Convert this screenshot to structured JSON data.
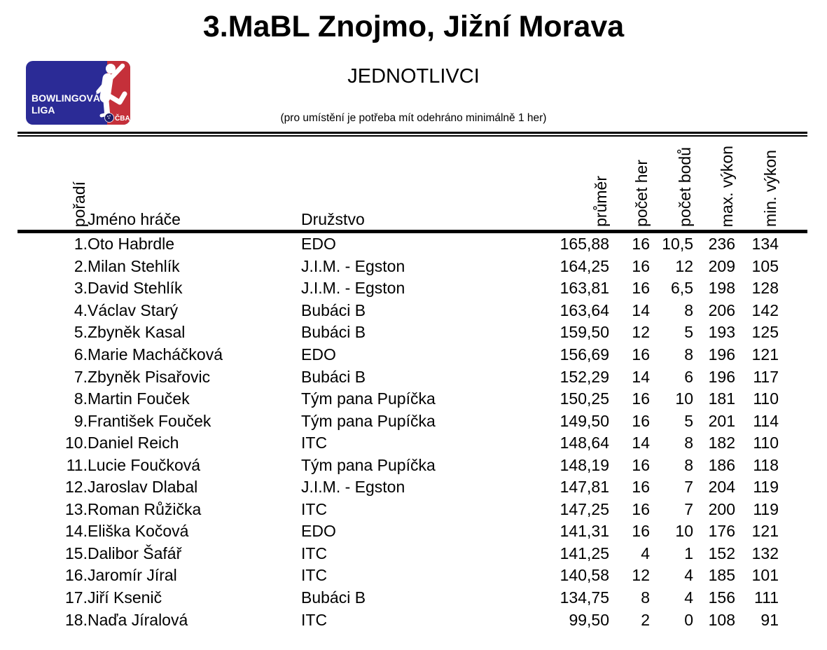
{
  "header": {
    "title": "3.MaBL Znojmo, Jižní Morava",
    "subtitle": "JEDNOTLIVCI",
    "note": "(pro umístění je potřeba mít odehráno minimálně 1 her)"
  },
  "logo": {
    "line1": "BOWLINGOVÁ",
    "line2": "LIGA",
    "badge": "ČBA",
    "colors": {
      "blue": "#2b2b96",
      "red": "#c5303a",
      "ball": "#1c1c66",
      "text": "#ffffff"
    }
  },
  "table": {
    "headers": {
      "rank": "pořadí",
      "name": "Jméno hráče",
      "team": "Družstvo",
      "average": "průměr",
      "games": "počet her",
      "points": "počet bodů",
      "max": "max. výkon",
      "min": "min. výkon"
    },
    "rows": [
      {
        "rank": "1.",
        "name": "Oto Habrdle",
        "team": "EDO",
        "average": "165,88",
        "games": "16",
        "points": "10,5",
        "max": "236",
        "min": "134"
      },
      {
        "rank": "2.",
        "name": "Milan Stehlík",
        "team": "J.I.M. - Egston",
        "average": "164,25",
        "games": "16",
        "points": "12",
        "max": "209",
        "min": "105"
      },
      {
        "rank": "3.",
        "name": "David Stehlík",
        "team": "J.I.M. - Egston",
        "average": "163,81",
        "games": "16",
        "points": "6,5",
        "max": "198",
        "min": "128"
      },
      {
        "rank": "4.",
        "name": "Václav Starý",
        "team": "Bubáci B",
        "average": "163,64",
        "games": "14",
        "points": "8",
        "max": "206",
        "min": "142"
      },
      {
        "rank": "5.",
        "name": "Zbyněk Kasal",
        "team": "Bubáci B",
        "average": "159,50",
        "games": "12",
        "points": "5",
        "max": "193",
        "min": "125"
      },
      {
        "rank": "6.",
        "name": "Marie Macháčková",
        "team": "EDO",
        "average": "156,69",
        "games": "16",
        "points": "8",
        "max": "196",
        "min": "121"
      },
      {
        "rank": "7.",
        "name": "Zbyněk Pisařovic",
        "team": "Bubáci B",
        "average": "152,29",
        "games": "14",
        "points": "6",
        "max": "196",
        "min": "117"
      },
      {
        "rank": "8.",
        "name": "Martin Fouček",
        "team": "Tým pana Pupíčka",
        "average": "150,25",
        "games": "16",
        "points": "10",
        "max": "181",
        "min": "110"
      },
      {
        "rank": "9.",
        "name": "František Fouček",
        "team": "Tým pana Pupíčka",
        "average": "149,50",
        "games": "16",
        "points": "5",
        "max": "201",
        "min": "114"
      },
      {
        "rank": "10.",
        "name": "Daniel Reich",
        "team": "ITC",
        "average": "148,64",
        "games": "14",
        "points": "8",
        "max": "182",
        "min": "110"
      },
      {
        "rank": "11.",
        "name": "Lucie Foučková",
        "team": "Tým pana Pupíčka",
        "average": "148,19",
        "games": "16",
        "points": "8",
        "max": "186",
        "min": "118"
      },
      {
        "rank": "12.",
        "name": "Jaroslav Dlabal",
        "team": "J.I.M. - Egston",
        "average": "147,81",
        "games": "16",
        "points": "7",
        "max": "204",
        "min": "119"
      },
      {
        "rank": "13.",
        "name": "Roman Růžička",
        "team": "ITC",
        "average": "147,25",
        "games": "16",
        "points": "7",
        "max": "200",
        "min": "119"
      },
      {
        "rank": "14.",
        "name": "Eliška Kočová",
        "team": "EDO",
        "average": "141,31",
        "games": "16",
        "points": "10",
        "max": "176",
        "min": "121"
      },
      {
        "rank": "15.",
        "name": "Dalibor Šafář",
        "team": "ITC",
        "average": "141,25",
        "games": "4",
        "points": "1",
        "max": "152",
        "min": "132"
      },
      {
        "rank": "16.",
        "name": "Jaromír Jíral",
        "team": "ITC",
        "average": "140,58",
        "games": "12",
        "points": "4",
        "max": "185",
        "min": "101"
      },
      {
        "rank": "17.",
        "name": "Jiří Ksenič",
        "team": "Bubáci B",
        "average": "134,75",
        "games": "8",
        "points": "4",
        "max": "156",
        "min": "111"
      },
      {
        "rank": "18.",
        "name": "Naďa Jíralová",
        "team": "ITC",
        "average": "99,50",
        "games": "2",
        "points": "0",
        "max": "108",
        "min": "91"
      }
    ]
  }
}
